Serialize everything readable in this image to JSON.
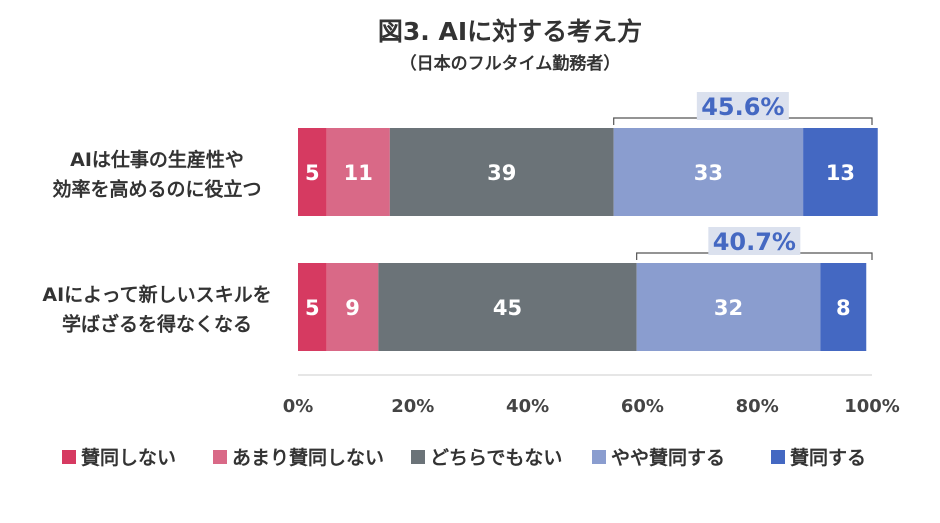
{
  "chart_data": {
    "type": "bar",
    "orientation": "horizontal",
    "stacked": true,
    "title": "図3. AIに対する考え方",
    "subtitle": "（日本のフルタイム勤務者）",
    "categories": [
      [
        "AIは仕事の生産性や",
        "効率を高めるのに役立つ"
      ],
      [
        "AIによって新しいスキルを",
        "学ばざるを得なくなる"
      ]
    ],
    "series": [
      {
        "name": "賛同しない",
        "values": [
          5,
          5
        ],
        "color": "#d63a61"
      },
      {
        "name": "あまり賛同しない",
        "values": [
          11,
          9
        ],
        "color": "#d96987"
      },
      {
        "name": "どちらでもない",
        "values": [
          39,
          45
        ],
        "color": "#6b7378"
      },
      {
        "name": "やや賛同する",
        "values": [
          33,
          32
        ],
        "color": "#8a9dcf"
      },
      {
        "name": "賛同する",
        "values": [
          13,
          8
        ],
        "color": "#4468c2"
      }
    ],
    "bracket_labels": [
      "45.6%",
      "40.7%"
    ],
    "x_ticks": [
      "0%",
      "20%",
      "40%",
      "60%",
      "80%",
      "100%"
    ],
    "xlim": [
      0,
      100
    ],
    "legend_position": "bottom",
    "grid": false
  }
}
